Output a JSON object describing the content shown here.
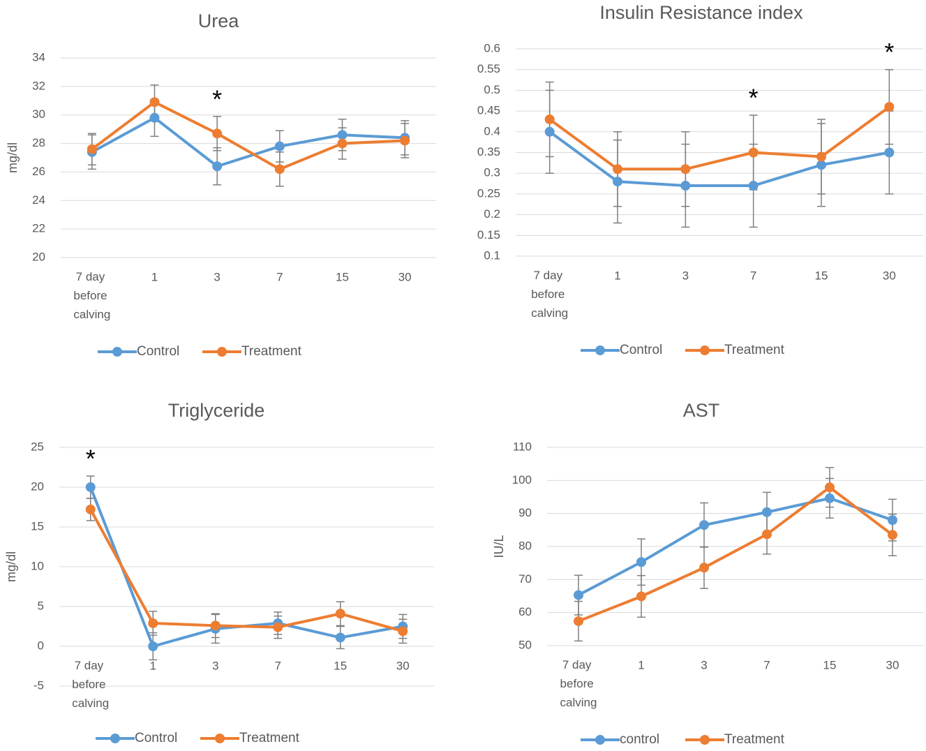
{
  "chart_data": [
    {
      "type": "line",
      "title": "Urea",
      "y_label": "mg/dl",
      "categories": [
        "7 day before calving",
        "1",
        "3",
        "7",
        "15",
        "30"
      ],
      "series": [
        {
          "name": "Control",
          "color": "#5b9bd5",
          "values": [
            27.4,
            29.8,
            26.4,
            27.8,
            28.6,
            28.4
          ],
          "errors": [
            1.2,
            1.3,
            1.3,
            1.1,
            1.1,
            1.2
          ]
        },
        {
          "name": "Treatment",
          "color": "#ed7d31",
          "values": [
            27.6,
            30.9,
            28.7,
            26.2,
            28.0,
            28.2
          ],
          "errors": [
            1.1,
            1.2,
            1.2,
            1.2,
            1.1,
            1.2
          ]
        }
      ],
      "ylim": [
        20,
        34
      ],
      "yticks": [
        20,
        22,
        24,
        26,
        28,
        30,
        32,
        34
      ],
      "grid": true,
      "annotations": [
        {
          "text": "*",
          "category": "3"
        }
      ]
    },
    {
      "type": "line",
      "title": "Insulin Resistance index",
      "categories": [
        "7 day before calving",
        "1",
        "3",
        "7",
        "15",
        "30"
      ],
      "series": [
        {
          "name": "Control",
          "color": "#5b9bd5",
          "values": [
            0.4,
            0.28,
            0.27,
            0.27,
            0.32,
            0.35
          ],
          "errors": [
            0.1,
            0.1,
            0.1,
            0.1,
            0.1,
            0.1
          ]
        },
        {
          "name": "Treatment",
          "color": "#ed7d31",
          "values": [
            0.43,
            0.31,
            0.31,
            0.35,
            0.34,
            0.46
          ],
          "errors": [
            0.09,
            0.09,
            0.09,
            0.09,
            0.09,
            0.09
          ]
        }
      ],
      "ylim": [
        0.1,
        0.6
      ],
      "yticks": [
        0.1,
        0.15,
        0.2,
        0.25,
        0.3,
        0.35,
        0.4,
        0.45,
        0.5,
        0.55,
        0.6
      ],
      "grid": true,
      "annotations": [
        {
          "text": "*",
          "category": "7"
        },
        {
          "text": "*",
          "category": "30"
        }
      ]
    },
    {
      "type": "line",
      "title": "Triglyceride",
      "y_label": "mg/dl",
      "categories": [
        "7 day before calving",
        "1",
        "3",
        "7",
        "15",
        "30"
      ],
      "series": [
        {
          "name": "Control",
          "color": "#5b9bd5",
          "values": [
            20.0,
            0.0,
            2.2,
            2.9,
            1.1,
            2.5
          ],
          "errors": [
            1.4,
            1.7,
            1.8,
            1.4,
            1.4,
            1.5
          ]
        },
        {
          "name": "Treatment",
          "color": "#ed7d31",
          "values": [
            17.2,
            2.9,
            2.6,
            2.4,
            4.1,
            1.9
          ],
          "errors": [
            1.4,
            1.5,
            1.5,
            1.4,
            1.5,
            1.5
          ]
        }
      ],
      "ylim": [
        -5,
        25
      ],
      "yticks": [
        -5,
        0,
        5,
        10,
        15,
        20,
        25
      ],
      "grid": true,
      "annotations": [
        {
          "text": "*",
          "category": "7 day before calving"
        }
      ]
    },
    {
      "type": "line",
      "title": "AST",
      "y_label": "IU/L",
      "categories": [
        "7 day before calving",
        "1",
        "3",
        "7",
        "15",
        "30"
      ],
      "series": [
        {
          "name": "control",
          "color": "#5b9bd5",
          "values": [
            65.3,
            75.3,
            86.5,
            90.4,
            94.6,
            88.0
          ],
          "errors": [
            6,
            7,
            6.7,
            6,
            6,
            6.3
          ]
        },
        {
          "name": "Treatment",
          "color": "#ed7d31",
          "values": [
            57.4,
            64.9,
            73.6,
            83.7,
            97.9,
            83.5
          ],
          "errors": [
            6,
            6.3,
            6.3,
            6,
            6,
            6.3
          ]
        }
      ],
      "ylim": [
        50,
        110
      ],
      "yticks": [
        50,
        60,
        70,
        80,
        90,
        100,
        110
      ],
      "grid": true,
      "annotations": []
    }
  ]
}
